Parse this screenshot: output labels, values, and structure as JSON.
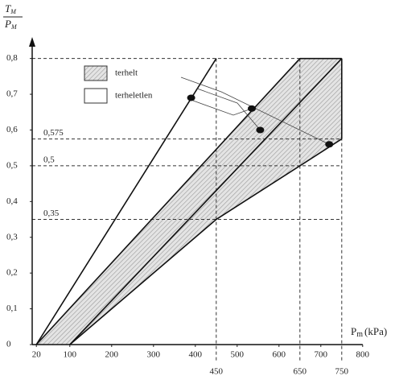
{
  "chart_data": {
    "type": "line",
    "ylabel_num": "T",
    "ylabel_num_sub": "M",
    "ylabel_den": "P",
    "ylabel_den_sub": "M",
    "xlabel": "P",
    "xlabel_sub": "m",
    "xlabel_unit": "(kPa)",
    "xlim": [
      10,
      810
    ],
    "ylim": [
      0,
      0.86
    ],
    "xticks": [
      20,
      100,
      200,
      300,
      400,
      500,
      600,
      700,
      800
    ],
    "yticks": [
      0,
      {
        "value": 0.1,
        "label": "0,1"
      },
      {
        "value": 0.2,
        "label": "0,2"
      },
      {
        "value": 0.3,
        "label": "0,3"
      },
      {
        "value": 0.4,
        "label": "0,4"
      },
      {
        "value": 0.5,
        "label": "0,5"
      },
      {
        "value": 0.6,
        "label": "0,6"
      },
      {
        "value": 0.7,
        "label": "0,7"
      },
      {
        "value": 0.8,
        "label": "0,8"
      }
    ],
    "x_ref_lines": [
      450,
      650,
      750
    ],
    "y_ref_lines": [
      {
        "value": 0.575,
        "label": "0,575"
      },
      {
        "value": 0.5,
        "label": "0,5"
      },
      {
        "value": 0.35,
        "label": "0,35"
      }
    ],
    "legend": [
      {
        "name": "terhelt",
        "pattern": "hatch"
      },
      {
        "name": "terheletlen",
        "pattern": "none"
      }
    ],
    "region": {
      "x": [
        20,
        650,
        750,
        750,
        450,
        100
      ],
      "y": [
        0,
        0.8,
        0.8,
        0.575,
        0.35,
        0
      ]
    },
    "lines": [
      {
        "x": [
          20,
          450
        ],
        "y": [
          0,
          0.8
        ]
      },
      {
        "x": [
          20,
          650
        ],
        "y": [
          0,
          0.8
        ]
      },
      {
        "x": [
          100,
          750
        ],
        "y": [
          0,
          0.8
        ]
      },
      {
        "x": [
          100,
          450,
          750
        ],
        "y": [
          0,
          0.35,
          0.575
        ]
      }
    ],
    "points": {
      "x": [
        390,
        535,
        555,
        720
      ],
      "y": [
        0.69,
        0.66,
        0.6,
        0.56
      ]
    }
  }
}
